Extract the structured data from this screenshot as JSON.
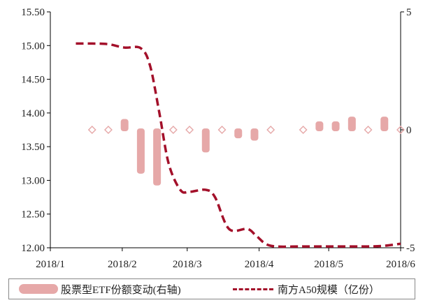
{
  "chart_data": {
    "type": "bar+line",
    "x_labels": [
      "2018/1",
      "2018/2",
      "2018/3",
      "2018/4",
      "2018/5",
      "2018/6"
    ],
    "left_axis": {
      "ticks": [
        "12.00",
        "12.50",
        "13.00",
        "13.50",
        "14.00",
        "14.50",
        "15.00",
        "15.50"
      ],
      "range": [
        12.0,
        15.5
      ]
    },
    "right_axis": {
      "ticks": [
        "-5",
        "0",
        "5"
      ],
      "range": [
        -5,
        5
      ]
    },
    "series": [
      {
        "name": "股票型ETF份额变动(右轴)",
        "type": "bar",
        "axis": "right",
        "color": "#e6a8a8",
        "points": [
          {
            "x": "2018-01-19",
            "y": 0.0
          },
          {
            "x": "2018-01-26",
            "y": -0.1
          },
          {
            "x": "2018-02-02",
            "y": 0.4
          },
          {
            "x": "2018-02-09",
            "y": -1.8
          },
          {
            "x": "2018-02-16",
            "y": -2.3
          },
          {
            "x": "2018-02-23",
            "y": 0.0
          },
          {
            "x": "2018-03-02",
            "y": -0.2
          },
          {
            "x": "2018-03-09",
            "y": -0.9
          },
          {
            "x": "2018-03-16",
            "y": -0.1
          },
          {
            "x": "2018-03-23",
            "y": -0.3
          },
          {
            "x": "2018-03-30",
            "y": -0.4
          },
          {
            "x": "2018-04-06",
            "y": 0.0
          },
          {
            "x": "2018-04-20",
            "y": 0.2
          },
          {
            "x": "2018-04-27",
            "y": 0.3
          },
          {
            "x": "2018-05-04",
            "y": 0.3
          },
          {
            "x": "2018-05-11",
            "y": 0.5
          },
          {
            "x": "2018-05-18",
            "y": 0.0
          },
          {
            "x": "2018-05-25",
            "y": 0.5
          },
          {
            "x": "2018-06-01",
            "y": 0.2
          }
        ]
      },
      {
        "name": "南方A50规模（亿份）",
        "type": "line",
        "axis": "left",
        "style": "dashed",
        "color": "#a3102a",
        "points": [
          {
            "x": "2018-01-12",
            "y": 15.03
          },
          {
            "x": "2018-01-19",
            "y": 15.03
          },
          {
            "x": "2018-01-26",
            "y": 15.02
          },
          {
            "x": "2018-02-02",
            "y": 14.97
          },
          {
            "x": "2018-02-09",
            "y": 14.96
          },
          {
            "x": "2018-02-13",
            "y": 14.7
          },
          {
            "x": "2018-02-17",
            "y": 14.0
          },
          {
            "x": "2018-02-21",
            "y": 13.25
          },
          {
            "x": "2018-02-26",
            "y": 12.86
          },
          {
            "x": "2018-03-02",
            "y": 12.83
          },
          {
            "x": "2018-03-09",
            "y": 12.86
          },
          {
            "x": "2018-03-13",
            "y": 12.75
          },
          {
            "x": "2018-03-19",
            "y": 12.28
          },
          {
            "x": "2018-03-27",
            "y": 12.28
          },
          {
            "x": "2018-03-31",
            "y": 12.17
          },
          {
            "x": "2018-04-06",
            "y": 12.03
          },
          {
            "x": "2018-04-20",
            "y": 12.02
          },
          {
            "x": "2018-05-04",
            "y": 12.02
          },
          {
            "x": "2018-05-18",
            "y": 12.02
          },
          {
            "x": "2018-05-25",
            "y": 12.03
          },
          {
            "x": "2018-06-01",
            "y": 12.06
          }
        ]
      }
    ],
    "legend_position": "bottom"
  }
}
